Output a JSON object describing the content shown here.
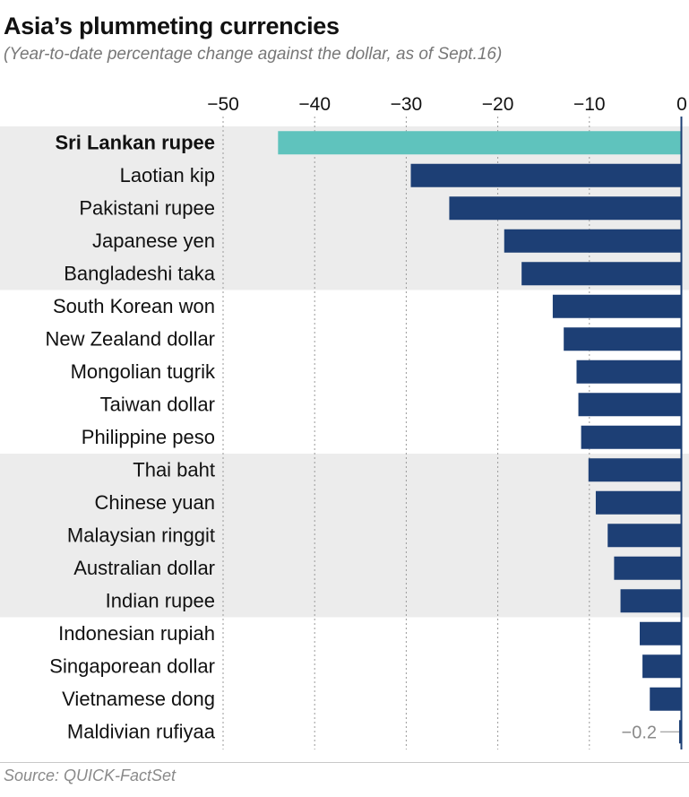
{
  "title": "Asia’s plummeting currencies",
  "subtitle": "(Year-to-date percentage change against the dollar, as of Sept.16)",
  "source": "Source: QUICK-FactSet",
  "colors": {
    "highlight_bar": "#5fc3bd",
    "bar": "#1d3f75",
    "band": "#ececec",
    "gridline": "#9a9a9a",
    "zero_line": "#1d3f75"
  },
  "chart_data": {
    "type": "bar",
    "orientation": "horizontal",
    "categories": [
      "Sri Lankan rupee",
      "Laotian kip",
      "Pakistani rupee",
      "Japanese yen",
      "Bangladeshi taka",
      "South Korean won",
      "New Zealand dollar",
      "Mongolian tugrik",
      "Taiwan dollar",
      "Philippine peso",
      "Thai baht",
      "Chinese yuan",
      "Malaysian ringgit",
      "Australian dollar",
      "Indian rupee",
      "Indonesian rupiah",
      "Singaporean dollar",
      "Vietnamese dong",
      "Maldivian rufiyaa"
    ],
    "values": [
      -44.0,
      -29.5,
      -25.3,
      -19.3,
      -17.4,
      -14.0,
      -12.8,
      -11.4,
      -11.2,
      -10.9,
      -10.1,
      -9.3,
      -8.0,
      -7.3,
      -6.6,
      -4.5,
      -4.2,
      -3.4,
      -0.2
    ],
    "highlight": "Sri Lankan rupee",
    "bands": [
      {
        "from": 0,
        "to": 4
      },
      {
        "from": 10,
        "to": 14
      }
    ],
    "xlim": [
      -50,
      0
    ],
    "xticks": [
      -50,
      -40,
      -30,
      -20,
      -10,
      0
    ],
    "xtick_labels": [
      "−50",
      "−40",
      "−30",
      "−20",
      "−10",
      "0"
    ],
    "axis_position": "top",
    "grid": true,
    "annotations": [
      {
        "category": "Maldivian rufiyaa",
        "text": "−0.2"
      }
    ],
    "title": "",
    "xlabel": "",
    "ylabel": ""
  }
}
